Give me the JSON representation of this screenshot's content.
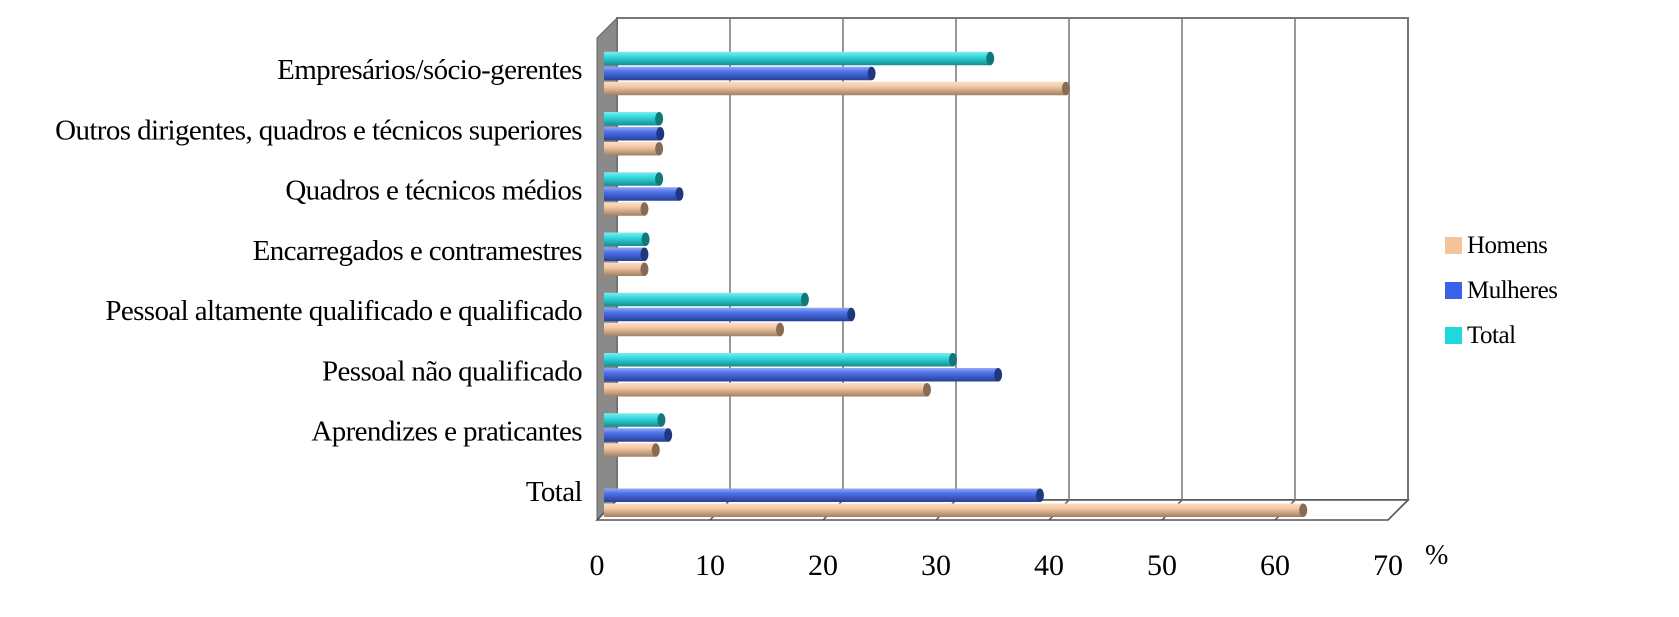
{
  "chart_data": {
    "type": "bar",
    "orientation": "horizontal",
    "style": "3d-cylinder",
    "categories": [
      "Empresários/sócio-gerentes",
      "Outros dirigentes, quadros e técnicos superiores",
      "Quadros e técnicos médios",
      "Encarregados e contramestres",
      "Pessoal altamente qualificado e qualificado",
      "Pessoal não qualificado",
      "Aprendizes e praticantes",
      "Total"
    ],
    "series": [
      {
        "name": "Homens",
        "color": "#f5c39a",
        "values": [
          41.5,
          5.5,
          4.2,
          4.2,
          16.2,
          29.2,
          5.2,
          62.5
        ]
      },
      {
        "name": "Mulheres",
        "color": "#3a62e8",
        "values": [
          24.3,
          5.6,
          7.3,
          4.2,
          22.5,
          35.5,
          6.3,
          39.2
        ]
      },
      {
        "name": "Total",
        "color": "#1fd8dc",
        "values": [
          34.8,
          5.5,
          5.5,
          4.3,
          18.4,
          31.5,
          5.7,
          null
        ]
      }
    ],
    "xlim": [
      0,
      70
    ],
    "xticks": [
      0,
      10,
      20,
      30,
      40,
      50,
      60,
      70
    ],
    "unit_label": "%",
    "grid": "vertical",
    "legend": "right"
  }
}
